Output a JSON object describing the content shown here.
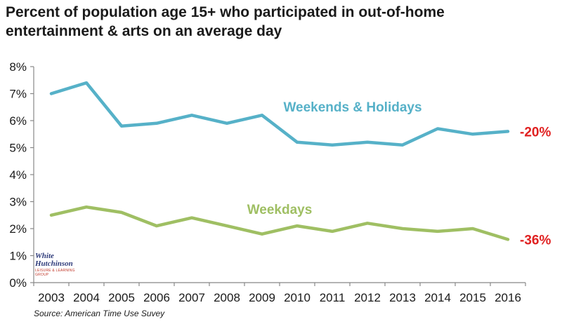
{
  "title": {
    "line1": "Percent of population age 15+ who participated in out-of-home",
    "line2": "entertainment & arts on an average day"
  },
  "source": "Source: American Time Use Suvey",
  "logo": {
    "line1": "White",
    "line2": "Hutchinson",
    "line3": "LEISURE & LEARNING GROUP"
  },
  "colors": {
    "weekends": "#56b1c8",
    "weekdays": "#9fbf63",
    "change": "#e02020",
    "axis": "#888888"
  },
  "chart_data": {
    "type": "line",
    "title": "Percent of population age 15+ who participated in out-of-home entertainment & arts on an average day",
    "xlabel": "",
    "ylabel": "",
    "x": [
      "2003",
      "2004",
      "2005",
      "2006",
      "2007",
      "2008",
      "2009",
      "2010",
      "2011",
      "2012",
      "2013",
      "2014",
      "2015",
      "2016"
    ],
    "ylim": [
      0,
      8
    ],
    "yticks": [
      "0%",
      "1%",
      "2%",
      "3%",
      "4%",
      "5%",
      "6%",
      "7%",
      "8%"
    ],
    "grid": false,
    "series": [
      {
        "name": "Weekends & Holidays",
        "values": [
          7.0,
          7.4,
          5.8,
          5.9,
          6.2,
          5.9,
          6.2,
          5.2,
          5.1,
          5.2,
          5.1,
          5.7,
          5.5,
          5.6
        ],
        "change_label": "-20%"
      },
      {
        "name": "Weekdays",
        "values": [
          2.5,
          2.8,
          2.6,
          2.1,
          2.4,
          2.1,
          1.8,
          2.1,
          1.9,
          2.2,
          2.0,
          1.9,
          2.0,
          1.6
        ],
        "change_label": "-36%"
      }
    ]
  }
}
